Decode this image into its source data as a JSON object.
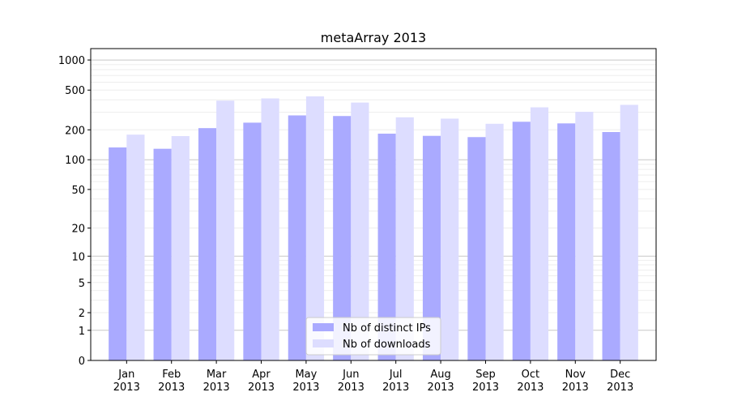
{
  "chart_data": {
    "type": "bar",
    "title": "metaArray 2013",
    "xlabel": "",
    "ylabel": "",
    "categories": [
      [
        "Jan",
        "2013"
      ],
      [
        "Feb",
        "2013"
      ],
      [
        "Mar",
        "2013"
      ],
      [
        "Apr",
        "2013"
      ],
      [
        "May",
        "2013"
      ],
      [
        "Jun",
        "2013"
      ],
      [
        "Jul",
        "2013"
      ],
      [
        "Aug",
        "2013"
      ],
      [
        "Sep",
        "2013"
      ],
      [
        "Oct",
        "2013"
      ],
      [
        "Nov",
        "2013"
      ],
      [
        "Dec",
        "2013"
      ]
    ],
    "series": [
      {
        "name": "Nb of distinct IPs",
        "color": "#aaaaff",
        "values": [
          133,
          129,
          208,
          236,
          279,
          275,
          183,
          174,
          169,
          241,
          232,
          190
        ]
      },
      {
        "name": "Nb of downloads",
        "color": "#ddddff",
        "values": [
          179,
          173,
          392,
          413,
          433,
          375,
          267,
          259,
          230,
          336,
          303,
          356
        ]
      }
    ],
    "y_scale": "symlog",
    "y_ticks": [
      0,
      1,
      2,
      5,
      10,
      20,
      50,
      100,
      200,
      500,
      1000
    ],
    "y_tick_labels": [
      "0",
      "1",
      "2",
      "5",
      "10",
      "20",
      "50",
      "100",
      "200",
      "500",
      "1000"
    ],
    "ylim": [
      0,
      1300
    ],
    "grid": true,
    "legend_position": "bottom-center"
  }
}
